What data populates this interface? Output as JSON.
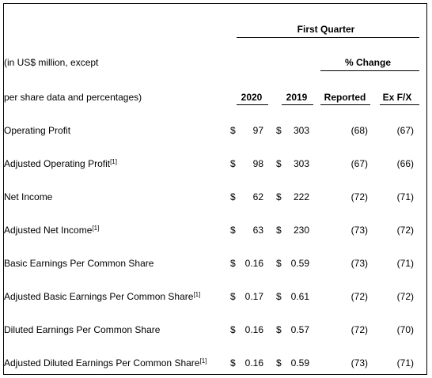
{
  "header": {
    "period": "First Quarter",
    "change_group": "% Change",
    "unit_line1": "(in US$ million, except",
    "unit_line2": "per share data and percentages)",
    "col_2020": "2020",
    "col_2019": "2019",
    "col_reported": "Reported",
    "col_exfx": "Ex F/X"
  },
  "rows": [
    {
      "label": "Operating Profit",
      "note": "",
      "c1": "$",
      "v2020": "97",
      "c2": "$",
      "v2019": "303",
      "reported": "(68)",
      "exfx": "(67)"
    },
    {
      "label": "Adjusted Operating Profit",
      "note": "[1]",
      "c1": "$",
      "v2020": "98",
      "c2": "$",
      "v2019": "303",
      "reported": "(67)",
      "exfx": "(66)"
    },
    {
      "label": "Net Income",
      "note": "",
      "c1": "$",
      "v2020": "62",
      "c2": "$",
      "v2019": "222",
      "reported": "(72)",
      "exfx": "(71)"
    },
    {
      "label": "Adjusted Net Income",
      "note": "[1]",
      "c1": "$",
      "v2020": "63",
      "c2": "$",
      "v2019": "230",
      "reported": "(73)",
      "exfx": "(72)"
    },
    {
      "label": "Basic Earnings Per Common Share",
      "note": "",
      "c1": "$",
      "v2020": "0.16",
      "c2": "$",
      "v2019": "0.59",
      "reported": "(73)",
      "exfx": "(71)"
    },
    {
      "label": "Adjusted Basic Earnings Per Common Share",
      "note": "[1]",
      "c1": "$",
      "v2020": "0.17",
      "c2": "$",
      "v2019": "0.61",
      "reported": "(72)",
      "exfx": "(72)"
    },
    {
      "label": "Diluted Earnings Per Common Share",
      "note": "",
      "c1": "$",
      "v2020": "0.16",
      "c2": "$",
      "v2019": "0.57",
      "reported": "(72)",
      "exfx": "(70)"
    },
    {
      "label": "Adjusted Diluted Earnings Per Common Share",
      "note": "[1]",
      "c1": "$",
      "v2020": "0.16",
      "c2": "$",
      "v2019": "0.59",
      "reported": "(73)",
      "exfx": "(71)"
    }
  ]
}
